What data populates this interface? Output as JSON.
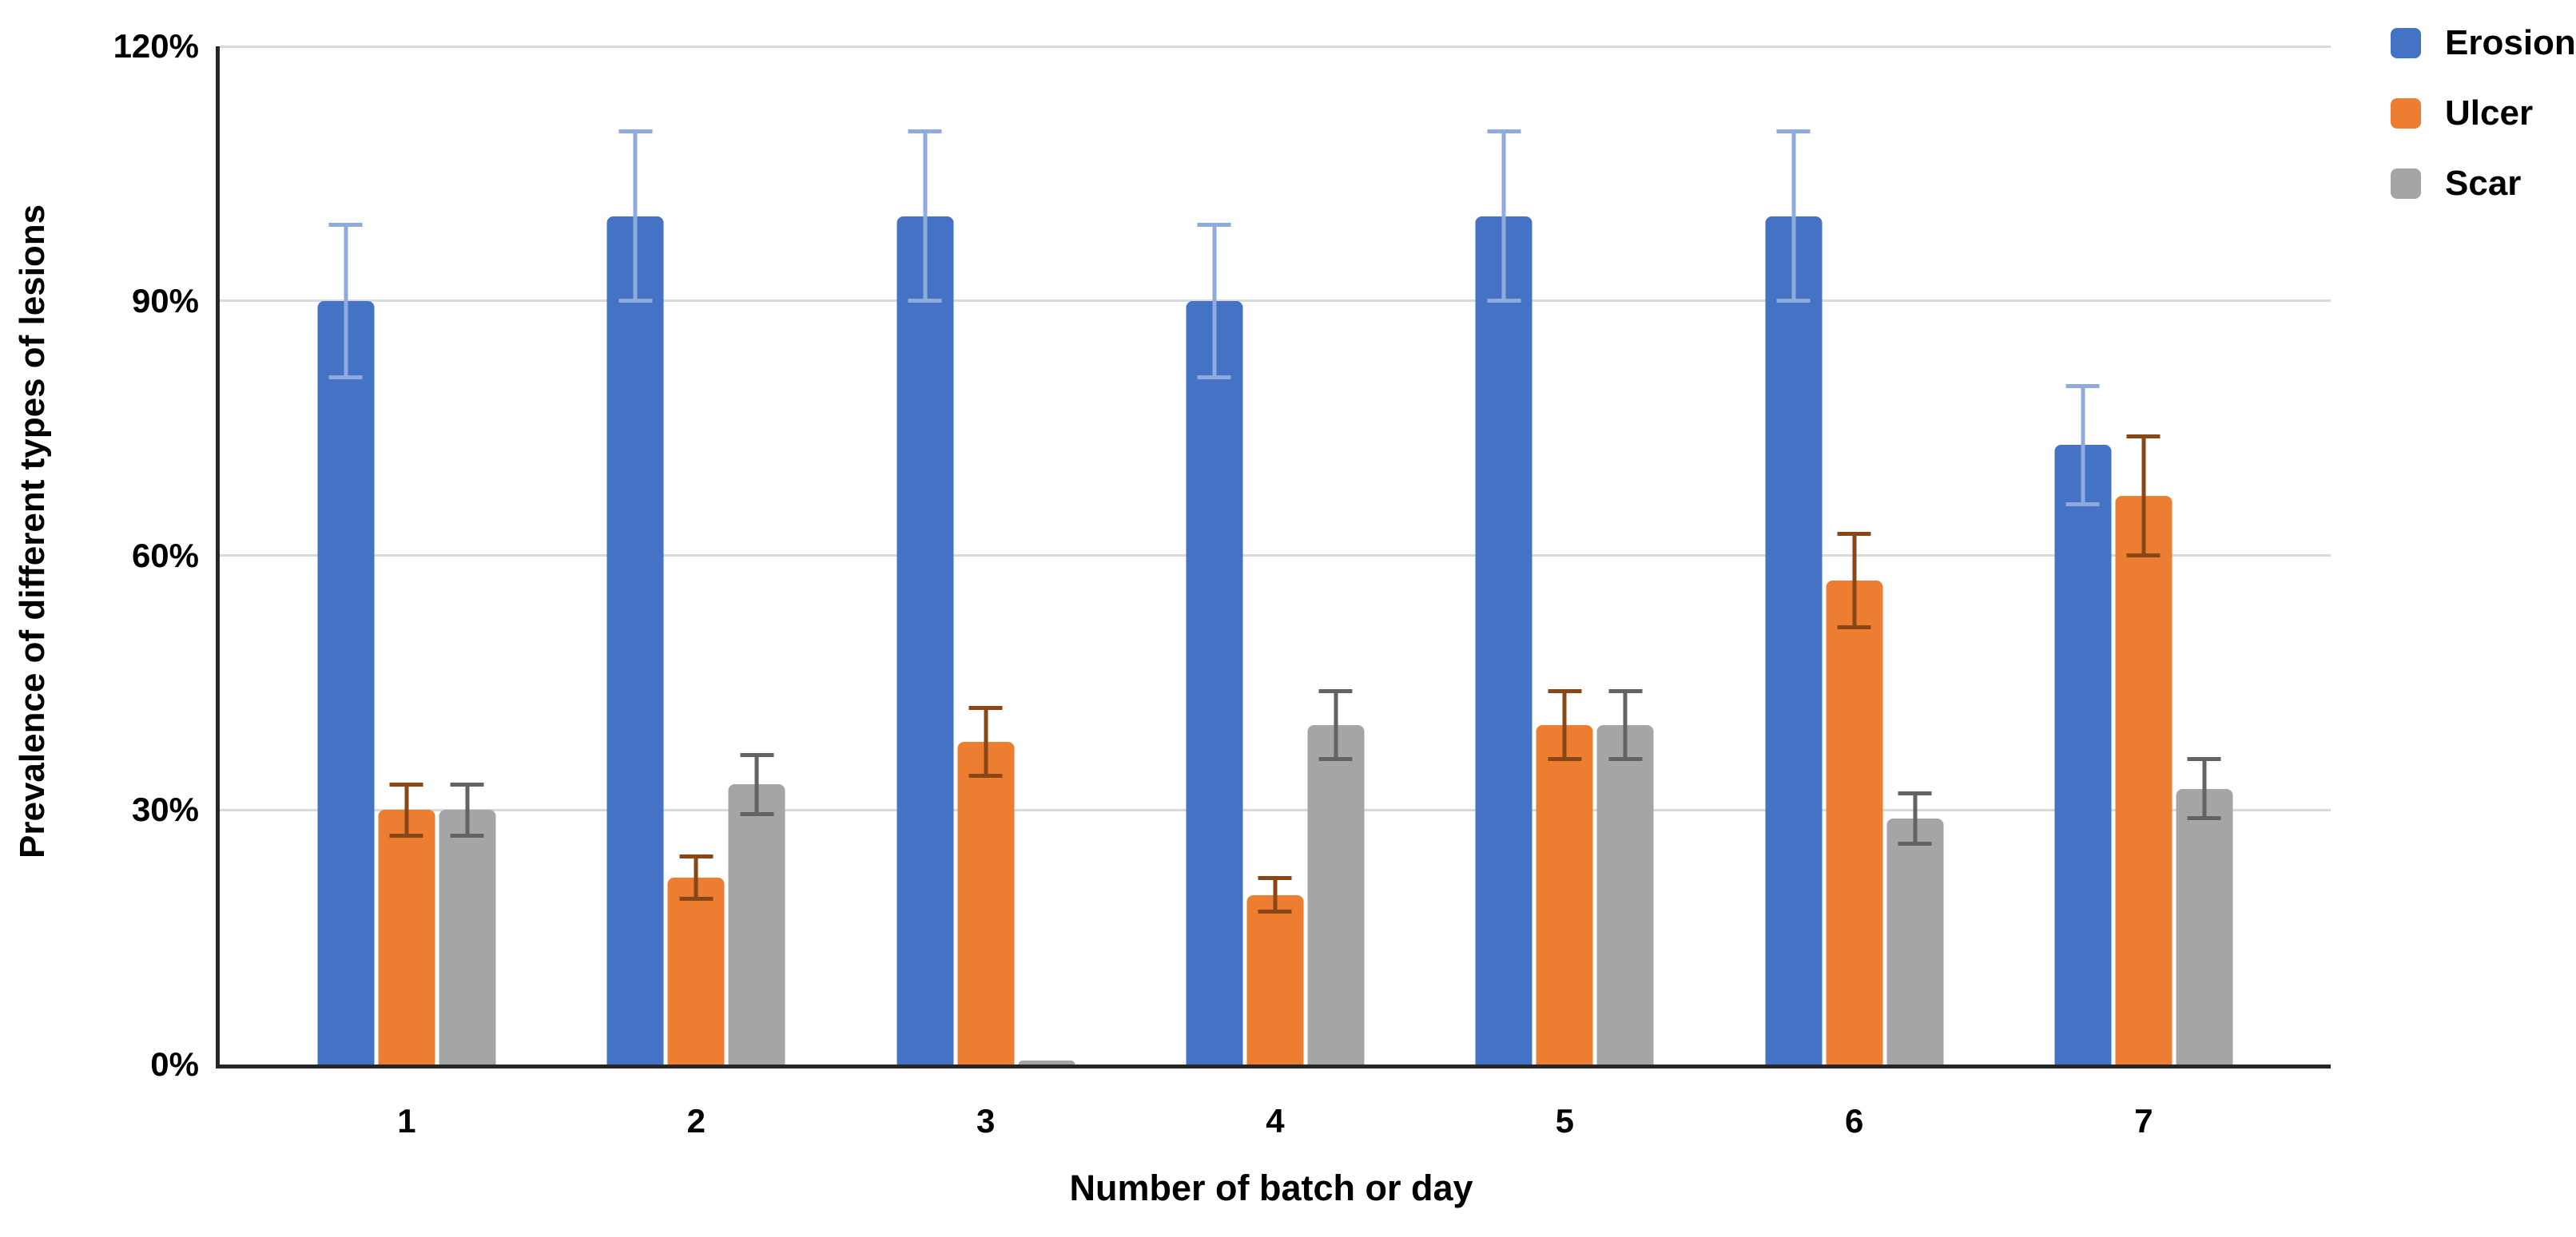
{
  "chart_data": {
    "type": "bar",
    "title": "",
    "xlabel": "Number of batch or day",
    "ylabel": "Prevalence of different types of lesions",
    "categories": [
      "1",
      "2",
      "3",
      "4",
      "5",
      "6",
      "7"
    ],
    "ylim": [
      0,
      120
    ],
    "y_ticks": [
      {
        "value": 0,
        "label": "0%"
      },
      {
        "value": 30,
        "label": "30%"
      },
      {
        "value": 60,
        "label": "60%"
      },
      {
        "value": 90,
        "label": "90%"
      },
      {
        "value": 120,
        "label": "120%"
      }
    ],
    "grid": true,
    "legend_position": "top-right",
    "axis_color": "#262626",
    "gridline_color": "#D9D9D9",
    "series": [
      {
        "name": "Erosion",
        "color": "#4472C4",
        "error_color": "#8FAADC",
        "values": [
          90,
          100,
          100,
          90,
          100,
          100,
          73
        ],
        "errors": [
          9,
          10,
          10,
          9,
          10,
          10,
          7
        ]
      },
      {
        "name": "Ulcer",
        "color": "#ED7D31",
        "error_color": "#8A4716",
        "values": [
          30,
          22,
          38,
          20,
          40,
          57,
          67
        ],
        "errors": [
          3,
          2.5,
          4,
          2,
          4,
          5.5,
          7
        ]
      },
      {
        "name": "Scar",
        "color": "#A5A5A5",
        "error_color": "#636363",
        "values": [
          30,
          33,
          0.5,
          40,
          40,
          29,
          32.5
        ],
        "errors": [
          3,
          3.5,
          null,
          4,
          4,
          3,
          3.5
        ]
      }
    ]
  }
}
